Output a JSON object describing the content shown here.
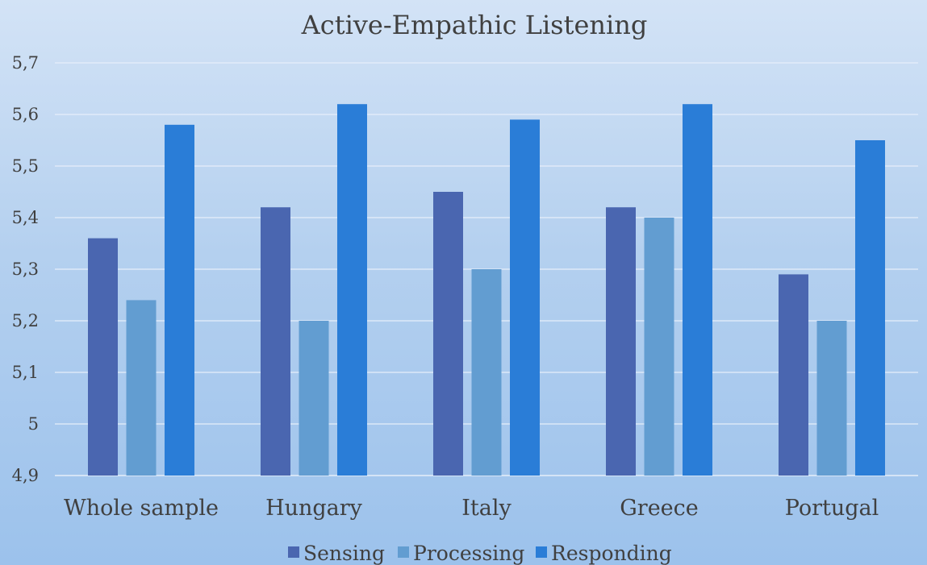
{
  "chart_data": {
    "type": "bar",
    "title": "Active-Empathic Listening",
    "categories": [
      "Whole sample",
      "Hungary",
      "Italy",
      "Greece",
      "Portugal"
    ],
    "series": [
      {
        "name": "Sensing",
        "color": "#4a66b0",
        "values": [
          5.36,
          5.42,
          5.45,
          5.42,
          5.29
        ]
      },
      {
        "name": "Processing",
        "color": "#629dd1",
        "values": [
          5.24,
          5.2,
          5.3,
          5.4,
          5.2
        ]
      },
      {
        "name": "Responding",
        "color": "#2a7dd7",
        "values": [
          5.58,
          5.62,
          5.59,
          5.62,
          5.55
        ]
      }
    ],
    "ylim": [
      4.9,
      5.7
    ],
    "yticks": [
      4.9,
      5,
      5.1,
      5.2,
      5.3,
      5.4,
      5.5,
      5.6,
      5.7
    ],
    "ytick_labels": [
      "4,9",
      "5",
      "5,1",
      "5,2",
      "5,3",
      "5,4",
      "5,5",
      "5,6",
      "5,7"
    ],
    "grid": true,
    "legend_position": "bottom",
    "xlabel": "",
    "ylabel": ""
  }
}
